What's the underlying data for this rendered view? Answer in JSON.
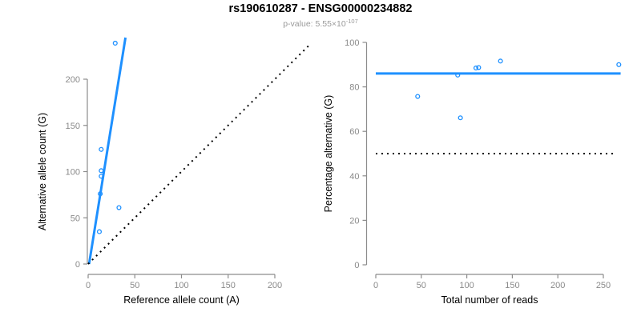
{
  "header": {
    "title": "rs190610287 - ENSG00000234882",
    "subtitle_prefix": "p-value: 5.55×10",
    "subtitle_exponent": "-107"
  },
  "colors": {
    "accent_blue": "#1E90FF",
    "axis_gray": "#8c8c8c",
    "tick_label_gray": "#8a8a8a",
    "axis_title_black": "#000000",
    "dotted_line_black": "#000000",
    "subtitle_gray": "#9a9a9a"
  },
  "chart_data": [
    {
      "type": "scatter",
      "name": "allele-counts",
      "title": "",
      "xlabel": "Reference allele count (A)",
      "ylabel": "Alternative allele count (G)",
      "xlim": [
        0,
        200
      ],
      "ylim": [
        0,
        200
      ],
      "xticks": [
        0,
        50,
        100,
        150,
        200
      ],
      "yticks": [
        0,
        50,
        100,
        150,
        200
      ],
      "grid": false,
      "legend": null,
      "points": [
        [
          12,
          35
        ],
        [
          13,
          76
        ],
        [
          14,
          95
        ],
        [
          14,
          101
        ],
        [
          14,
          124
        ],
        [
          29,
          239
        ],
        [
          33,
          61
        ]
      ],
      "lines": [
        {
          "name": "regression-line",
          "x1": 1,
          "y1": 0,
          "x2": 40,
          "y2": 245,
          "style": "solid",
          "color": "#1E90FF",
          "width": 3
        },
        {
          "name": "identity-line",
          "x1": 0,
          "y1": 0,
          "x2": 238,
          "y2": 238,
          "style": "dotted",
          "color": "#000000",
          "width": 2
        }
      ]
    },
    {
      "type": "scatter",
      "name": "percentage-vs-reads",
      "title": "",
      "xlabel": "Total number of reads",
      "ylabel": "Percentage alternative (G)",
      "xlim": [
        0,
        250
      ],
      "ylim": [
        0,
        100
      ],
      "xticks": [
        0,
        50,
        100,
        150,
        200,
        250
      ],
      "yticks": [
        0,
        20,
        40,
        60,
        80,
        100
      ],
      "grid": false,
      "legend": null,
      "points": [
        [
          46,
          75.7
        ],
        [
          90,
          85.3
        ],
        [
          93,
          66.1
        ],
        [
          110,
          88.5
        ],
        [
          113,
          88.7
        ],
        [
          137,
          91.6
        ],
        [
          267,
          90.0
        ]
      ],
      "lines": [
        {
          "name": "mean-percentage-line",
          "x1": 0,
          "y1": 86,
          "x2": 269,
          "y2": 86,
          "style": "solid",
          "color": "#1E90FF",
          "width": 3
        },
        {
          "name": "fifty-percent-line",
          "x1": 0,
          "y1": 50,
          "x2": 263,
          "y2": 50,
          "style": "dotted",
          "color": "#000000",
          "width": 2
        }
      ]
    }
  ]
}
